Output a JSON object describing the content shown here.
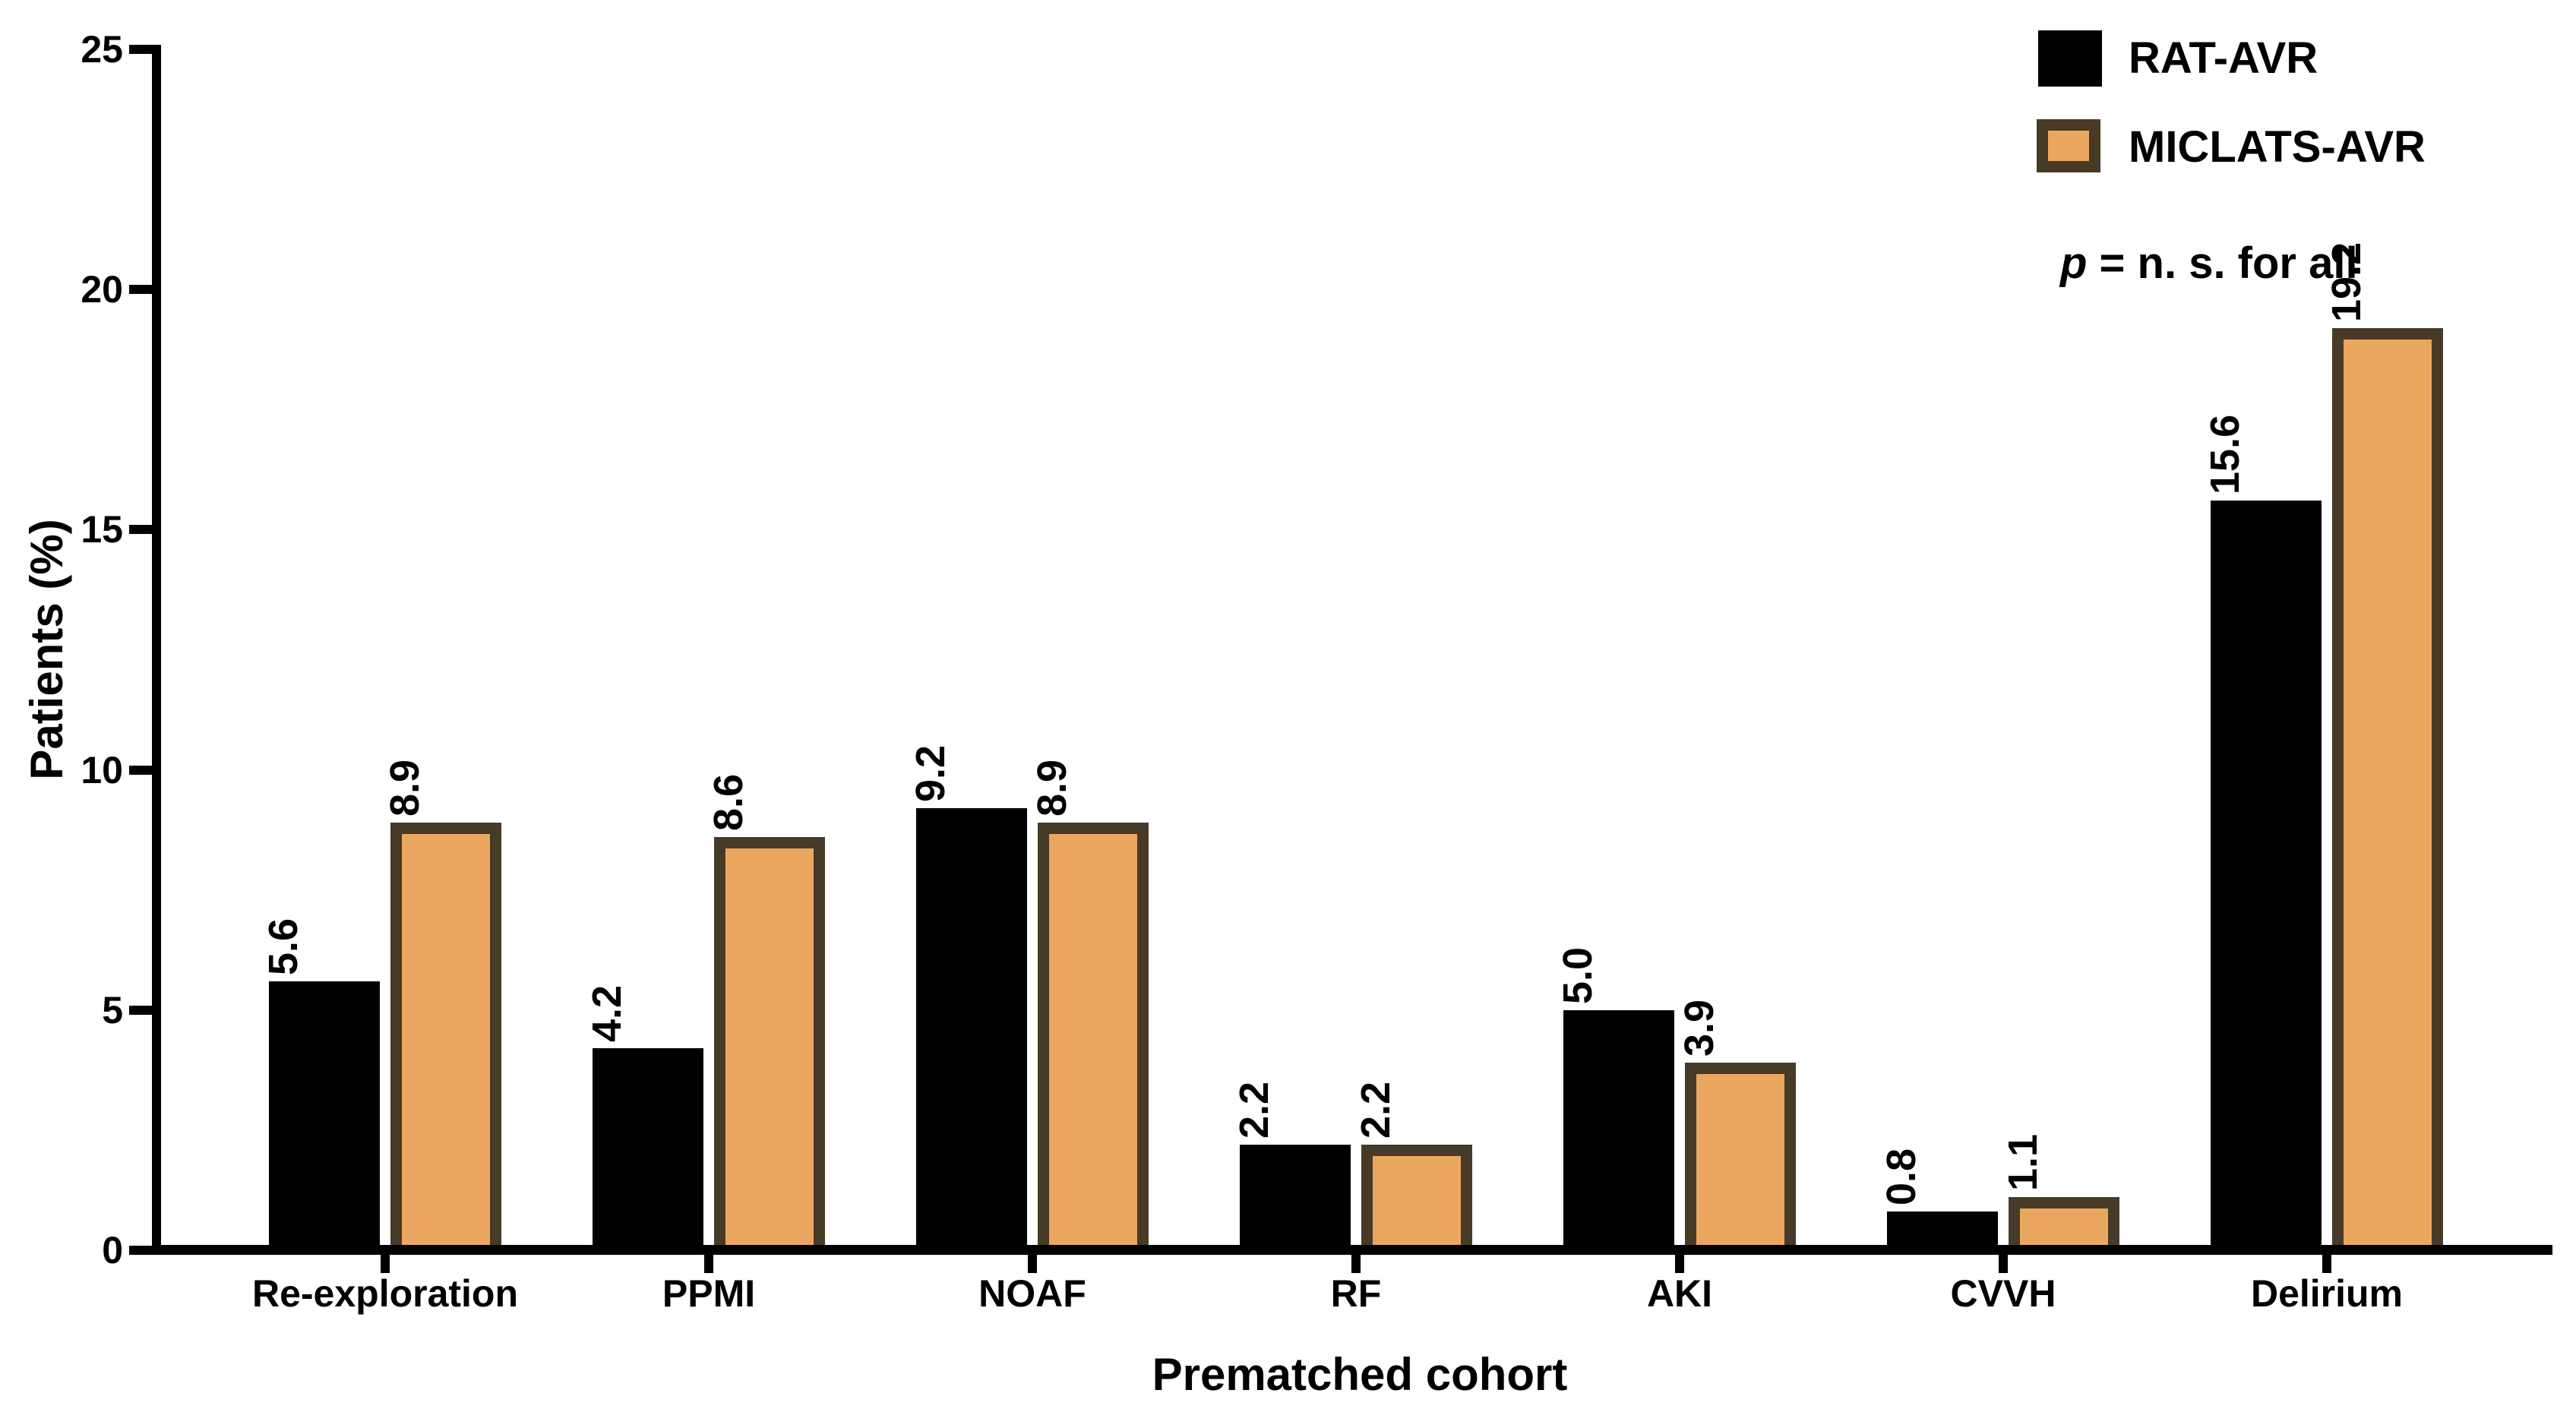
{
  "page": {
    "background": "#ffffff"
  },
  "chart_data": {
    "type": "bar",
    "title": "",
    "xlabel": "Prematched cohort",
    "ylabel": "Patients (%)",
    "ylim": [
      0,
      25
    ],
    "yticks": [
      25,
      20,
      15,
      10,
      5,
      0
    ],
    "grid": false,
    "legend_position": "top-right",
    "bar_value_labels_rotated": true,
    "categories": [
      "Re-exploration",
      "PPMI",
      "NOAF",
      "RF",
      "AKI",
      "CVVH",
      "Delirium"
    ],
    "series": [
      {
        "name": "RAT-AVR",
        "color": "#000000",
        "values": [
          5.6,
          4.2,
          9.2,
          2.2,
          5.0,
          0.8,
          15.6
        ],
        "value_labels": [
          "5.6",
          "4.2",
          "9.2",
          "2.2",
          "5.0",
          "0.8",
          "15.6"
        ]
      },
      {
        "name": "MICLATS-AVR",
        "color": "#EBA75F",
        "border_color": "#473A26",
        "values": [
          8.9,
          8.6,
          8.9,
          2.2,
          3.9,
          1.1,
          19.2
        ],
        "value_labels": [
          "8.9",
          "8.6",
          "8.9",
          "2.2",
          "3.9",
          "1.1",
          "19.2"
        ]
      }
    ],
    "annotation": {
      "p_symbol": "p",
      "rest": " = n. s. for all",
      "full": "p = n. s. for all"
    }
  }
}
